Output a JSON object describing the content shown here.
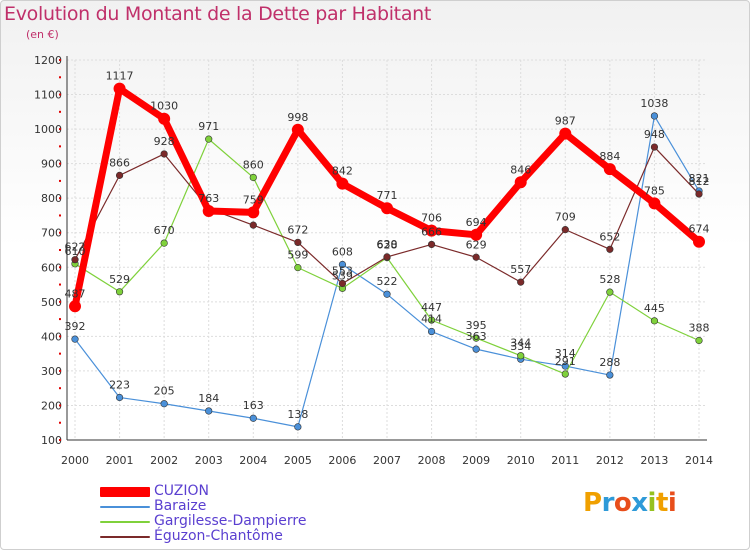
{
  "title": "Evolution du Montant de la Dette par Habitant",
  "subtitle": "(en €)",
  "logo": [
    "P",
    "r",
    "o",
    "x",
    "i",
    "t",
    "i"
  ],
  "chart_data": {
    "type": "line",
    "title": "Evolution du Montant de la Dette par Habitant",
    "subtitle": "(en €)",
    "xlabel": "",
    "ylabel": "",
    "x": [
      "2000",
      "2001",
      "2002",
      "2003",
      "2004",
      "2005",
      "2006",
      "2007",
      "2008",
      "2009",
      "2010",
      "2011",
      "2012",
      "2013",
      "2014"
    ],
    "ylim": [
      100,
      1200
    ],
    "yticks": [
      "100",
      "200",
      "300",
      "400",
      "500",
      "600",
      "700",
      "800",
      "900",
      "1000",
      "1100",
      "1200"
    ],
    "grid": true,
    "legend": "bottom-left",
    "series": [
      {
        "name": "CUZION",
        "color": "#ff0000",
        "values": [
          487,
          1117,
          1030,
          763,
          759,
          998,
          842,
          771,
          706,
          694,
          846,
          987,
          884,
          785,
          674
        ],
        "labels": [
          "487",
          "1117",
          "1030",
          "763",
          "759",
          "998",
          "842",
          "771",
          "706",
          "694",
          "846",
          "987",
          "884",
          "785",
          "674"
        ]
      },
      {
        "name": "Baraize",
        "color": "#4a90d9",
        "values": [
          392,
          223,
          205,
          184,
          163,
          138,
          608,
          522,
          414,
          363,
          334,
          314,
          288,
          1038,
          821
        ],
        "labels": [
          "392",
          "223",
          "205",
          "184",
          "163",
          "138",
          "608",
          "522",
          "414",
          "363",
          "334",
          "314",
          "288",
          "1038",
          "821"
        ]
      },
      {
        "name": "Gargilesse-Dampierre",
        "color": "#7fd13b",
        "values": [
          610,
          529,
          670,
          971,
          860,
          599,
          539,
          628,
          447,
          395,
          344,
          291,
          528,
          445,
          388
        ],
        "labels": [
          "610",
          "529",
          "670",
          "971",
          "860",
          "599",
          "539",
          "628",
          "447",
          "395",
          "344",
          "291",
          "528",
          "445",
          "388"
        ]
      },
      {
        "name": "Éguzon-Chantôme",
        "color": "#7b2a2a",
        "values": [
          622,
          866,
          928,
          770,
          722,
          672,
          553,
          630,
          666,
          629,
          557,
          709,
          652,
          948,
          812
        ],
        "labels": [
          "622",
          "866",
          "928",
          "",
          "",
          "672",
          "553",
          "630",
          "666",
          "629",
          "557",
          "709",
          "652",
          "948",
          "812"
        ]
      }
    ]
  }
}
